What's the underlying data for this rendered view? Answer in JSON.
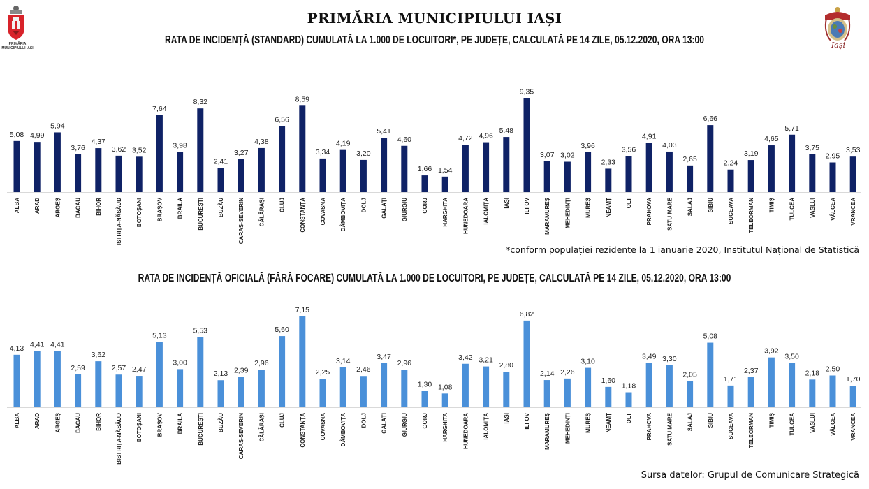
{
  "header": {
    "title": "PRIMĂRIA MUNICIPIULUI IAȘI",
    "logo_left_caption": "PRIMĂRIA MUNICIPIULUI IAȘI",
    "logo_right_caption": "Iași"
  },
  "footnote": "*conform populației rezidente la 1 ianuarie 2020, Institutul Național de Statistică",
  "source": "Sursa datelor: Grupul de Comunicare Strategică",
  "colors": {
    "chart1_bar": "#0f2266",
    "chart2_bar": "#4a90d9",
    "axis": "#d9d9d9"
  },
  "chart_data": [
    {
      "type": "bar",
      "title": "RATA DE INCIDENȚĂ (STANDARD) CUMULATĂ LA 1.000 DE LOCUITORI*, PE JUDEȚE, CALCULATĂ PE 14 ZILE, 05.12.2020, ORA 13:00",
      "xlabel": "",
      "ylabel": "",
      "ylim": [
        0,
        10
      ],
      "grid": false,
      "categories": [
        "ALBA",
        "ARAD",
        "ARGEȘ",
        "BACĂU",
        "BIHOR",
        "BISTRIȚA-NĂSĂUD",
        "BOTOȘANI",
        "BRAȘOV",
        "BRĂILA",
        "BUCUREȘTI",
        "BUZĂU",
        "CARAȘ-SEVERIN",
        "CĂLĂRAȘI",
        "CLUJ",
        "CONSTANȚA",
        "COVASNA",
        "DÂMBOVIȚA",
        "DOLJ",
        "GALAȚI",
        "GIURGIU",
        "GORJ",
        "HARGHITA",
        "HUNEDOARA",
        "IALOMIȚA",
        "IAȘI",
        "ILFOV",
        "MARAMUREȘ",
        "MEHEDINȚI",
        "MUREȘ",
        "NEAMȚ",
        "OLT",
        "PRAHOVA",
        "SATU MARE",
        "SĂLAJ",
        "SIBIU",
        "SUCEAVA",
        "TELEORMAN",
        "TIMIȘ",
        "TULCEA",
        "VASLUI",
        "VÂLCEA",
        "VRANCEA"
      ],
      "values": [
        5.08,
        4.99,
        5.94,
        3.76,
        4.37,
        3.62,
        3.52,
        7.64,
        3.98,
        8.32,
        2.41,
        3.27,
        4.38,
        6.56,
        8.59,
        3.34,
        4.19,
        3.2,
        5.41,
        4.6,
        1.66,
        1.54,
        4.72,
        4.96,
        5.48,
        9.35,
        3.07,
        3.02,
        3.96,
        2.33,
        3.56,
        4.91,
        4.03,
        2.65,
        6.66,
        2.24,
        3.19,
        4.65,
        5.71,
        3.75,
        2.95,
        3.53
      ],
      "labels": [
        "5,08",
        "4,99",
        "5,94",
        "3,76",
        "4,37",
        "3,62",
        "3,52",
        "7,64",
        "3,98",
        "8,32",
        "2,41",
        "3,27",
        "4,38",
        "6,56",
        "8,59",
        "3,34",
        "4,19",
        "3,20",
        "5,41",
        "4,60",
        "1,66",
        "1,54",
        "4,72",
        "4,96",
        "5,48",
        "9,35",
        "3,07",
        "3,02",
        "3,96",
        "2,33",
        "3,56",
        "4,91",
        "4,03",
        "2,65",
        "6,66",
        "2,24",
        "3,19",
        "4,65",
        "5,71",
        "3,75",
        "2,95",
        "3,53"
      ]
    },
    {
      "type": "bar",
      "title": "RATA DE INCIDENȚĂ OFICIALĂ (FĂRĂ FOCARE) CUMULATĂ LA 1.000 DE LOCUITORI, PE JUDEȚE, CALCULATĂ PE 14 ZILE, 05.12.2020, ORA 13:00",
      "xlabel": "",
      "ylabel": "",
      "ylim": [
        0,
        8
      ],
      "grid": false,
      "categories": [
        "ALBA",
        "ARAD",
        "ARGEȘ",
        "BACĂU",
        "BIHOR",
        "BISTRIȚA-NĂSĂUD",
        "BOTOȘANI",
        "BRAȘOV",
        "BRĂILA",
        "BUCUREȘTI",
        "BUZĂU",
        "CARAȘ-SEVERIN",
        "CĂLĂRAȘI",
        "CLUJ",
        "CONSTANȚA",
        "COVASNA",
        "DÂMBOVIȚA",
        "DOLJ",
        "GALAȚI",
        "GIURGIU",
        "GORJ",
        "HARGHITA",
        "HUNEDOARA",
        "IALOMIȚA",
        "IAȘI",
        "ILFOV",
        "MARAMUREȘ",
        "MEHEDINȚI",
        "MUREȘ",
        "NEAMȚ",
        "OLT",
        "PRAHOVA",
        "SATU MARE",
        "SĂLAJ",
        "SIBIU",
        "SUCEAVA",
        "TELEORMAN",
        "TIMIȘ",
        "TULCEA",
        "VASLUI",
        "VÂLCEA",
        "VRANCEA"
      ],
      "values": [
        4.13,
        4.41,
        4.41,
        2.59,
        3.62,
        2.57,
        2.47,
        5.13,
        3.0,
        5.53,
        2.13,
        2.39,
        2.96,
        5.6,
        7.15,
        2.25,
        3.14,
        2.46,
        3.47,
        2.96,
        1.3,
        1.08,
        3.42,
        3.21,
        2.8,
        6.82,
        2.14,
        2.26,
        3.1,
        1.6,
        1.18,
        3.49,
        3.3,
        2.05,
        5.08,
        1.71,
        2.37,
        3.92,
        3.5,
        2.18,
        2.5,
        1.7
      ],
      "labels": [
        "4,13",
        "4,41",
        "4,41",
        "2,59",
        "3,62",
        "2,57",
        "2,47",
        "5,13",
        "3,00",
        "5,53",
        "2,13",
        "2,39",
        "2,96",
        "5,60",
        "7,15",
        "2,25",
        "3,14",
        "2,46",
        "3,47",
        "2,96",
        "1,30",
        "1,08",
        "3,42",
        "3,21",
        "2,80",
        "6,82",
        "2,14",
        "2,26",
        "3,10",
        "1,60",
        "1,18",
        "3,49",
        "3,30",
        "2,05",
        "5,08",
        "1,71",
        "2,37",
        "3,92",
        "3,50",
        "2,18",
        "2,50",
        "1,70"
      ]
    }
  ]
}
